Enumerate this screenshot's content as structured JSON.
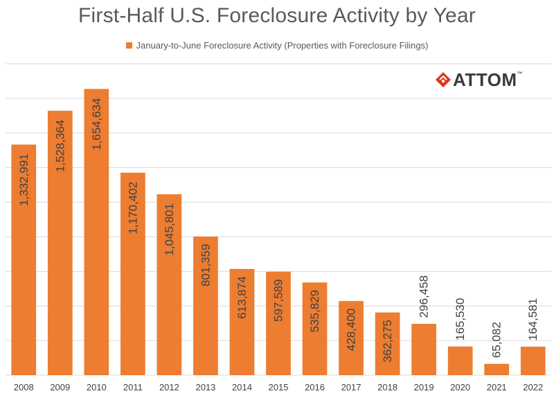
{
  "title": "First-Half U.S. Foreclosure Activity by Year",
  "logo": {
    "text": "ATTOM",
    "trademark": "™",
    "color": "#e0351e"
  },
  "colors": {
    "bar": "#ED7D31",
    "grid": "#d9d9d9",
    "axis_text": "#404040",
    "bar_label": "#404040"
  },
  "chart_data": {
    "type": "bar",
    "categories": [
      "2008",
      "2009",
      "2010",
      "2011",
      "2012",
      "2013",
      "2014",
      "2015",
      "2016",
      "2017",
      "2018",
      "2019",
      "2020",
      "2021",
      "2022"
    ],
    "series": [
      {
        "name": "January-to-June Foreclosure Activity (Properties with Foreclosure Filings)",
        "values": [
          1332991,
          1528364,
          1654634,
          1170402,
          1045801,
          801359,
          613874,
          597589,
          535829,
          428400,
          362275,
          296458,
          165530,
          65082,
          164581
        ],
        "labels": [
          "1,332,991",
          "1,528,364",
          "1,654,634",
          "1,170,402",
          "1,045,801",
          "801,359",
          "613,874",
          "597,589",
          "535,829",
          "428,400",
          "362,275",
          "296,458",
          "165,530",
          "65,082",
          "164,581"
        ]
      }
    ],
    "ylim": [
      0,
      1800000
    ],
    "grid_step": 200000,
    "grid": true,
    "legend_position": "top"
  }
}
